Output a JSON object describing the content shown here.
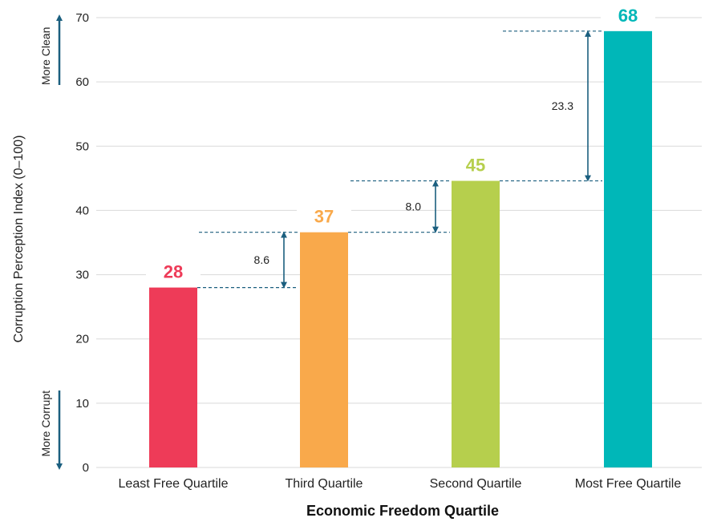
{
  "chart_data": {
    "type": "bar",
    "title": "",
    "xlabel": "Economic Freedom Quartile",
    "ylabel": "Corruption Perception Index (0–100)",
    "ylim": [
      0,
      70
    ],
    "yticks": [
      0,
      10,
      20,
      30,
      40,
      50,
      60,
      70
    ],
    "grid": true,
    "categories": [
      "Least Free Quartile",
      "Third Quartile",
      "Second Quartile",
      "Most Free Quartile"
    ],
    "values": [
      28,
      36.6,
      44.6,
      67.9
    ],
    "value_labels": [
      "28",
      "37",
      "45",
      "68"
    ],
    "colors": [
      "#ee3b58",
      "#f9a94b",
      "#b6cf4d",
      "#00b7b8"
    ],
    "differences": [
      {
        "from": 0,
        "to": 1,
        "label": "8.6"
      },
      {
        "from": 1,
        "to": 2,
        "label": "8.0"
      },
      {
        "from": 2,
        "to": 3,
        "label": "23.3"
      }
    ],
    "annotations": {
      "top": "More Clean",
      "bottom": "More Corrupt",
      "arrow_color": "#1b5f7f"
    }
  }
}
